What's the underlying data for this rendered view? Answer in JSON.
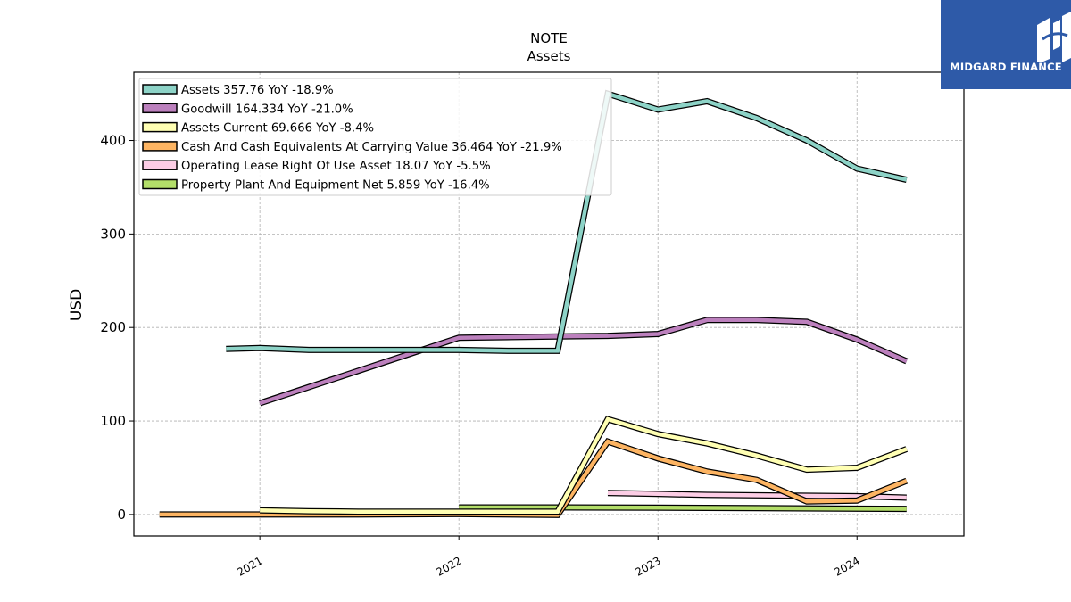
{
  "chart_data": {
    "type": "line",
    "title": "NOTE",
    "subtitle": "Assets",
    "xlabel": "",
    "ylabel": "USD",
    "ylim": [
      -23,
      473
    ],
    "xlim": [
      "2020-05-15",
      "2024-07-15"
    ],
    "x_ticks": [
      "2021",
      "2022",
      "2023",
      "2024"
    ],
    "y_ticks": [
      "0",
      "100",
      "200",
      "300",
      "400"
    ],
    "grid": true,
    "legend_position": "top-left",
    "series": [
      {
        "name": "Assets  357.76 YoY -18.9%",
        "color": "#8dd3c7",
        "x": [
          "2020-10-31",
          "2021-01-01",
          "2021-04-01",
          "2021-07-01",
          "2021-10-01",
          "2022-01-01",
          "2022-04-01",
          "2022-07-01",
          "2022-10-01",
          "2023-01-01",
          "2023-04-01",
          "2023-07-01",
          "2023-10-01",
          "2024-01-01",
          "2024-04-01"
        ],
        "values": [
          177,
          178,
          176,
          176,
          176,
          176,
          175,
          175,
          450,
          433,
          442,
          424,
          400,
          370,
          358
        ]
      },
      {
        "name": "Goodwill  164.334 YoY -21.0%",
        "color": "#bc80bd",
        "x": [
          "2021-01-01",
          "2022-01-01",
          "2022-10-01",
          "2023-01-01",
          "2023-04-01",
          "2023-07-01",
          "2023-10-01",
          "2024-01-01",
          "2024-04-01"
        ],
        "values": [
          119,
          189,
          191,
          193,
          208,
          208,
          206,
          187,
          164
        ]
      },
      {
        "name": "Assets Current  69.666 YoY -8.4%",
        "color": "#ffffb3",
        "x": [
          "2021-01-01",
          "2021-04-01",
          "2021-07-01",
          "2021-10-01",
          "2022-01-01",
          "2022-04-01",
          "2022-07-01",
          "2022-10-01",
          "2023-01-01",
          "2023-04-01",
          "2023-07-01",
          "2023-10-01",
          "2024-01-01",
          "2024-04-01"
        ],
        "values": [
          4.5,
          3.5,
          3,
          3,
          3,
          3,
          3,
          102,
          86,
          76,
          63,
          48,
          50,
          70
        ]
      },
      {
        "name": "Cash And Cash Equivalents At Carrying Value  36.464 YoY -21.9%",
        "color": "#fdb462",
        "x": [
          "2020-07-01",
          "2021-01-01",
          "2021-07-01",
          "2022-01-01",
          "2022-07-01",
          "2022-10-01",
          "2023-01-01",
          "2023-04-01",
          "2023-07-01",
          "2023-10-01",
          "2024-01-01",
          "2024-04-01"
        ],
        "values": [
          0,
          0,
          0,
          0.5,
          -0.5,
          78,
          60,
          46,
          37,
          14,
          15,
          36
        ]
      },
      {
        "name": "Operating Lease Right Of Use Asset  18.07 YoY -5.5%",
        "color": "#fccde5",
        "x": [
          "2022-10-01",
          "2023-01-01",
          "2023-04-01",
          "2023-07-01",
          "2023-10-01",
          "2024-01-01",
          "2024-04-01"
        ],
        "values": [
          23,
          22,
          21,
          20.5,
          20,
          19.5,
          18
        ]
      },
      {
        "name": "Property Plant And Equipment Net  5.859 YoY -16.4%",
        "color": "#b3de69",
        "x": [
          "2022-01-01",
          "2022-07-01",
          "2023-01-01",
          "2023-07-01",
          "2024-01-01",
          "2024-04-01"
        ],
        "values": [
          7.5,
          7.5,
          7.2,
          6.8,
          6.2,
          6
        ]
      }
    ]
  },
  "logo": {
    "text": "MIDGARD FINANCE",
    "background": "#2e5aa8"
  }
}
